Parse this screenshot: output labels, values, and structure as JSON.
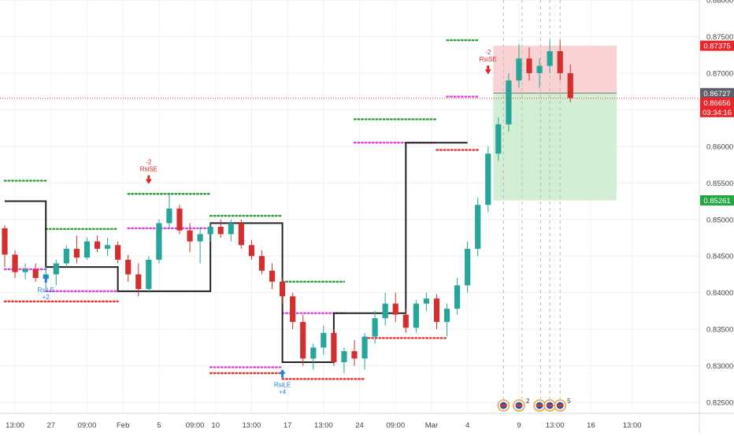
{
  "chart_data": {
    "type": "candlestick",
    "ylim": [
      0.8235,
      0.88
    ],
    "x_range": [
      0,
      68
    ],
    "y_ticks": [
      {
        "value": 0.88,
        "label": "0.88000"
      },
      {
        "value": 0.875,
        "label": "0.87500"
      },
      {
        "value": 0.87,
        "label": "0.87000"
      },
      {
        "value": 0.865,
        "label": "0.86500"
      },
      {
        "value": 0.86,
        "label": "0.86000"
      },
      {
        "value": 0.855,
        "label": "0.85500"
      },
      {
        "value": 0.85,
        "label": "0.85000"
      },
      {
        "value": 0.845,
        "label": "0.84500"
      },
      {
        "value": 0.84,
        "label": "0.84000"
      },
      {
        "value": 0.835,
        "label": "0.83500"
      },
      {
        "value": 0.83,
        "label": "0.83000"
      },
      {
        "value": 0.825,
        "label": "0.82500"
      }
    ],
    "x_ticks": [
      {
        "x": 1.0,
        "label": "13:00"
      },
      {
        "x": 4.5,
        "label": "27"
      },
      {
        "x": 8.0,
        "label": "09:00"
      },
      {
        "x": 11.5,
        "label": "Feb"
      },
      {
        "x": 15.0,
        "label": "5"
      },
      {
        "x": 18.5,
        "label": "09:00"
      },
      {
        "x": 20.5,
        "label": "10"
      },
      {
        "x": 24.0,
        "label": "13:00"
      },
      {
        "x": 27.5,
        "label": "17"
      },
      {
        "x": 31.0,
        "label": "13:00"
      },
      {
        "x": 34.5,
        "label": "24"
      },
      {
        "x": 38.0,
        "label": "09:00"
      },
      {
        "x": 41.5,
        "label": "Mar"
      },
      {
        "x": 45.0,
        "label": "4"
      },
      {
        "x": 50.0,
        "label": "9"
      },
      {
        "x": 53.5,
        "label": "13:00"
      },
      {
        "x": 57.0,
        "label": "16"
      },
      {
        "x": 61.0,
        "label": "13:00"
      }
    ],
    "candles": [
      [
        0.8488,
        0.8492,
        0.8435,
        0.8452
      ],
      [
        0.8452,
        0.8458,
        0.842,
        0.8428
      ],
      [
        0.8428,
        0.844,
        0.8418,
        0.8432
      ],
      [
        0.8432,
        0.844,
        0.8415,
        0.842
      ],
      [
        0.842,
        0.8436,
        0.8405,
        0.8425
      ],
      [
        0.8425,
        0.8445,
        0.841,
        0.844
      ],
      [
        0.844,
        0.8465,
        0.8435,
        0.846
      ],
      [
        0.846,
        0.8478,
        0.844,
        0.8448
      ],
      [
        0.8448,
        0.8475,
        0.8445,
        0.847
      ],
      [
        0.847,
        0.8478,
        0.8455,
        0.846
      ],
      [
        0.846,
        0.8475,
        0.845,
        0.8465
      ],
      [
        0.8465,
        0.847,
        0.844,
        0.8445
      ],
      [
        0.8445,
        0.8452,
        0.8415,
        0.8425
      ],
      [
        0.8425,
        0.844,
        0.8395,
        0.8405
      ],
      [
        0.8405,
        0.845,
        0.84,
        0.8445
      ],
      [
        0.8445,
        0.85,
        0.844,
        0.8495
      ],
      [
        0.8495,
        0.8535,
        0.8488,
        0.8515
      ],
      [
        0.8515,
        0.852,
        0.848,
        0.8485
      ],
      [
        0.8485,
        0.8495,
        0.8455,
        0.847
      ],
      [
        0.847,
        0.849,
        0.844,
        0.848
      ],
      [
        0.848,
        0.8495,
        0.847,
        0.849
      ],
      [
        0.849,
        0.85,
        0.8475,
        0.848
      ],
      [
        0.848,
        0.85,
        0.847,
        0.8495
      ],
      [
        0.8495,
        0.85,
        0.846,
        0.8465
      ],
      [
        0.8465,
        0.8472,
        0.8445,
        0.845
      ],
      [
        0.845,
        0.8458,
        0.8425,
        0.843
      ],
      [
        0.843,
        0.844,
        0.8405,
        0.8415
      ],
      [
        0.8415,
        0.842,
        0.8385,
        0.8395
      ],
      [
        0.8395,
        0.84,
        0.835,
        0.836
      ],
      [
        0.836,
        0.837,
        0.83,
        0.831
      ],
      [
        0.831,
        0.833,
        0.8295,
        0.8325
      ],
      [
        0.8325,
        0.8355,
        0.8315,
        0.8345
      ],
      [
        0.8345,
        0.835,
        0.83,
        0.8305
      ],
      [
        0.8305,
        0.8325,
        0.829,
        0.832
      ],
      [
        0.832,
        0.8335,
        0.83,
        0.831
      ],
      [
        0.831,
        0.8345,
        0.8295,
        0.834
      ],
      [
        0.834,
        0.8375,
        0.833,
        0.8365
      ],
      [
        0.8365,
        0.84,
        0.8355,
        0.8385
      ],
      [
        0.8385,
        0.84,
        0.836,
        0.837
      ],
      [
        0.837,
        0.8378,
        0.8345,
        0.8352
      ],
      [
        0.8352,
        0.839,
        0.8345,
        0.8385
      ],
      [
        0.8385,
        0.84,
        0.8375,
        0.8392
      ],
      [
        0.8392,
        0.8398,
        0.835,
        0.836
      ],
      [
        0.836,
        0.8385,
        0.834,
        0.8378
      ],
      [
        0.8378,
        0.842,
        0.837,
        0.841
      ],
      [
        0.841,
        0.847,
        0.84,
        0.846
      ],
      [
        0.846,
        0.853,
        0.845,
        0.852
      ],
      [
        0.852,
        0.86,
        0.851,
        0.859
      ],
      [
        0.859,
        0.864,
        0.858,
        0.863
      ],
      [
        0.863,
        0.87,
        0.862,
        0.869
      ],
      [
        0.869,
        0.874,
        0.868,
        0.872
      ],
      [
        0.872,
        0.8735,
        0.869,
        0.87
      ],
      [
        0.87,
        0.872,
        0.868,
        0.871
      ],
      [
        0.871,
        0.8745,
        0.87,
        0.873
      ],
      [
        0.873,
        0.8745,
        0.869,
        0.87
      ],
      [
        0.87,
        0.8712,
        0.866,
        0.8666
      ]
    ],
    "candle_x": [
      0,
      1,
      2,
      3,
      4,
      5,
      6,
      7,
      8,
      9,
      10,
      11,
      12,
      13,
      14,
      15,
      16,
      17,
      18,
      19,
      20,
      21,
      22,
      23,
      24,
      25,
      26,
      27,
      28,
      29,
      30,
      31,
      32,
      33,
      34,
      35,
      36,
      37,
      38,
      39,
      40,
      41,
      42,
      43,
      44,
      45,
      46,
      47,
      48,
      49,
      50,
      51,
      52,
      53,
      54,
      55
    ],
    "step_line": [
      [
        0,
        0.8525
      ],
      [
        4,
        0.8525
      ],
      [
        4,
        0.8435
      ],
      [
        11,
        0.8435
      ],
      [
        11,
        0.8402
      ],
      [
        20,
        0.8402
      ],
      [
        20,
        0.8495
      ],
      [
        27,
        0.8495
      ],
      [
        27,
        0.8305
      ],
      [
        32,
        0.8305
      ],
      [
        32,
        0.8372
      ],
      [
        39,
        0.8372
      ],
      [
        39,
        0.8605
      ],
      [
        45,
        0.8605
      ]
    ],
    "dotted_levels": [
      {
        "color": "#2e9e3e",
        "x0": 0,
        "x1": 4,
        "y": 0.8553
      },
      {
        "color": "#2e9e3e",
        "x0": 4,
        "x1": 11,
        "y": 0.8487
      },
      {
        "color": "#2e9e3e",
        "x0": 12,
        "x1": 20,
        "y": 0.8535
      },
      {
        "color": "#2e9e3e",
        "x0": 20,
        "x1": 27,
        "y": 0.8505
      },
      {
        "color": "#2e9e3e",
        "x0": 27,
        "x1": 33,
        "y": 0.8415
      },
      {
        "color": "#2e9e3e",
        "x0": 34,
        "x1": 42,
        "y": 0.8637
      },
      {
        "color": "#2e9e3e",
        "x0": 43,
        "x1": 46,
        "y": 0.8745
      },
      {
        "color": "#e040e0",
        "x0": 0,
        "x1": 4,
        "y": 0.8432
      },
      {
        "color": "#e040e0",
        "x0": 4,
        "x1": 11,
        "y": 0.8402
      },
      {
        "color": "#e040e0",
        "x0": 12,
        "x1": 20,
        "y": 0.8488
      },
      {
        "color": "#e040e0",
        "x0": 20,
        "x1": 27,
        "y": 0.8298
      },
      {
        "color": "#e040e0",
        "x0": 27,
        "x1": 33,
        "y": 0.8372
      },
      {
        "color": "#e040e0",
        "x0": 34,
        "x1": 42,
        "y": 0.8605
      },
      {
        "color": "#e040e0",
        "x0": 43,
        "x1": 46,
        "y": 0.8668
      },
      {
        "color": "#e83030",
        "x0": 0,
        "x1": 11,
        "y": 0.8388
      },
      {
        "color": "#e83030",
        "x0": 20,
        "x1": 27,
        "y": 0.829
      },
      {
        "color": "#e83030",
        "x0": 27,
        "x1": 35,
        "y": 0.8282
      },
      {
        "color": "#e83030",
        "x0": 35,
        "x1": 43,
        "y": 0.8338
      },
      {
        "color": "#e83030",
        "x0": 42,
        "x1": 46,
        "y": 0.8595
      }
    ],
    "signals": [
      {
        "x": 4,
        "y": 0.8432,
        "side": "long",
        "labels": [
          "RsiLE",
          "+2"
        ]
      },
      {
        "x": 14,
        "y": 0.854,
        "side": "short",
        "labels": [
          "-2",
          "RsiSE"
        ]
      },
      {
        "x": 27,
        "y": 0.8302,
        "side": "long",
        "labels": [
          "RsiLE",
          "+4"
        ]
      },
      {
        "x": 47,
        "y": 0.869,
        "side": "short",
        "labels": [
          "-2",
          "RsiSE"
        ]
      }
    ],
    "position": {
      "x0": 47.5,
      "x1": 59.5,
      "stop": 0.87375,
      "entry": 0.86727,
      "target": 0.85261
    },
    "current_price": 0.86656,
    "dashed_verticals": [
      48.5,
      50.3,
      52.1,
      53.0,
      54.0
    ],
    "price_tags": [
      {
        "value": 0.87375,
        "label": "0.87375",
        "color": "#e8262c"
      },
      {
        "value": 0.86727,
        "label": "0.86727",
        "color": "#5d606b"
      },
      {
        "value": 0.86656,
        "label": "0.86656",
        "color": "#e8262c"
      },
      {
        "value": 0.8615,
        "label": "03:34:16",
        "color": "#e8262c"
      },
      {
        "value": 0.85261,
        "label": "0.85261",
        "color": "#22a744"
      }
    ],
    "event_badges": [
      {
        "x": 48.5,
        "count": ""
      },
      {
        "x": 50.0,
        "count": "2"
      },
      {
        "x": 52.0,
        "count": ""
      },
      {
        "x": 53.0,
        "count": ""
      },
      {
        "x": 54.0,
        "count": "5"
      }
    ],
    "colors": {
      "up": "#26a69a",
      "down": "#d32f2f",
      "stop_fill": "#f8c8c8",
      "target_fill": "#cdeccf",
      "axis_text": "#444444",
      "grid": "#eeeeee"
    }
  }
}
